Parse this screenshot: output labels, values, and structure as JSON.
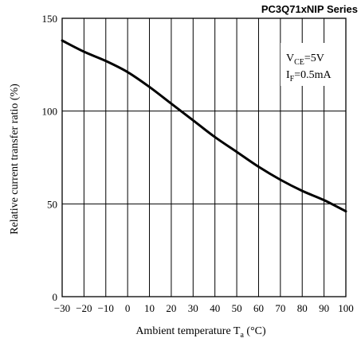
{
  "header": {
    "series_title": "PC3Q71xNIP Series"
  },
  "colors": {
    "line": "#000000",
    "grid": "#000000",
    "background": "#ffffff"
  },
  "chart_data": {
    "type": "line",
    "title": "",
    "xlabel": {
      "main": "Ambient temperature T",
      "sub": "a",
      "unit": " (°C)"
    },
    "ylabel": "Relative current transfer ratio (%)",
    "xlim": [
      -30,
      100
    ],
    "ylim": [
      0,
      150
    ],
    "xticks": [
      -30,
      -20,
      -10,
      0,
      10,
      20,
      30,
      40,
      50,
      60,
      70,
      80,
      90,
      100
    ],
    "xtick_labels": [
      "−30",
      "−20",
      "−10",
      "0",
      "10",
      "20",
      "30",
      "40",
      "50",
      "60",
      "70",
      "80",
      "90",
      "100"
    ],
    "yticks": [
      0,
      50,
      100,
      150
    ],
    "ytick_labels": [
      "0",
      "50",
      "100",
      "150"
    ],
    "grid": {
      "vertical": true,
      "horizontal": true
    },
    "annotations": [
      {
        "main": "V",
        "sub": "CE",
        "rest": "=5V"
      },
      {
        "main": "I",
        "sub": "F",
        "rest": "=0.5mA"
      }
    ],
    "series": [
      {
        "x": [
          -30,
          -20,
          -10,
          0,
          10,
          20,
          30,
          40,
          50,
          60,
          70,
          80,
          90,
          100
        ],
        "y": [
          138,
          132,
          127,
          121,
          113,
          104,
          95,
          86,
          78,
          70,
          63,
          57,
          52,
          46
        ]
      }
    ]
  }
}
